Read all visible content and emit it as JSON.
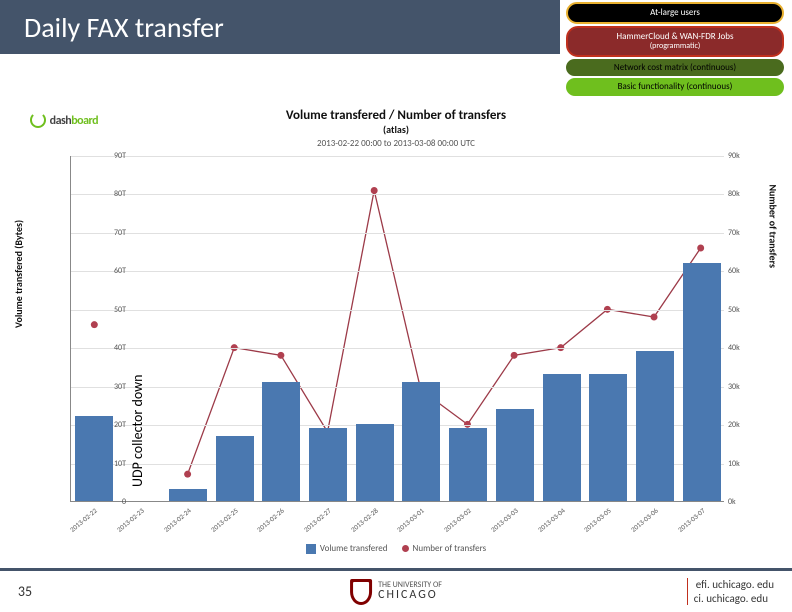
{
  "header": {
    "title": "Daily FAX transfer"
  },
  "badges": [
    {
      "label": "At-large users",
      "cls": "b-black"
    },
    {
      "label": "HammerCloud & WAN-FDR Jobs",
      "sub": "(programmatic)",
      "cls": "b-dred"
    },
    {
      "label": "Network cost matrix (continuous)",
      "cls": "b-dgreen"
    },
    {
      "label": "Basic functionality (continuous)",
      "cls": "b-green"
    }
  ],
  "dash": {
    "prefix": "dash",
    "suffix": "board"
  },
  "chart": {
    "title": "Volume transfered / Number of transfers",
    "subtitle": "(atlas)",
    "daterange": "2013-02-22 00:00 to 2013-03-08 00:00 UTC",
    "y_left_label": "Volume transfered (Bytes)",
    "y_right_label": "Number of transfers",
    "y_left_ticks": [
      "0",
      "10T",
      "20T",
      "30T",
      "40T",
      "50T",
      "60T",
      "70T",
      "80T",
      "90T"
    ],
    "y_right_ticks": [
      "0k",
      "10k",
      "20k",
      "30k",
      "40k",
      "50k",
      "60k",
      "70k",
      "80k",
      "90k"
    ],
    "y_max": 90,
    "x_categories": [
      "2013-02-22",
      "2013-02-23",
      "2013-02-24",
      "2013-02-25",
      "2013-02-26",
      "2013-02-27",
      "2013-02-28",
      "2013-03-01",
      "2013-03-02",
      "2013-03-03",
      "2013-03-04",
      "2013-03-05",
      "2013-03-06",
      "2013-03-07"
    ],
    "bars": [
      22,
      null,
      3,
      17,
      31,
      19,
      20,
      31,
      19,
      24,
      33,
      33,
      39,
      62
    ],
    "line": [
      46,
      null,
      7,
      40,
      38,
      18,
      81,
      29,
      20,
      38,
      40,
      50,
      48,
      66
    ],
    "bar_color": "#4a78b0",
    "line_color": "#9c3a48",
    "point_color": "#b04050",
    "grid_color": "#e0e0e0",
    "legend": {
      "bars": "Volume transfered",
      "line": "Number of transfers"
    }
  },
  "annotation": {
    "text": "UDP collector down"
  },
  "footer": {
    "page": "35",
    "uc_top": "THE UNIVERSITY OF",
    "uc_name": "CHICAGO",
    "links": [
      "efi. uchicago. edu",
      "ci. uchicago. edu"
    ]
  }
}
